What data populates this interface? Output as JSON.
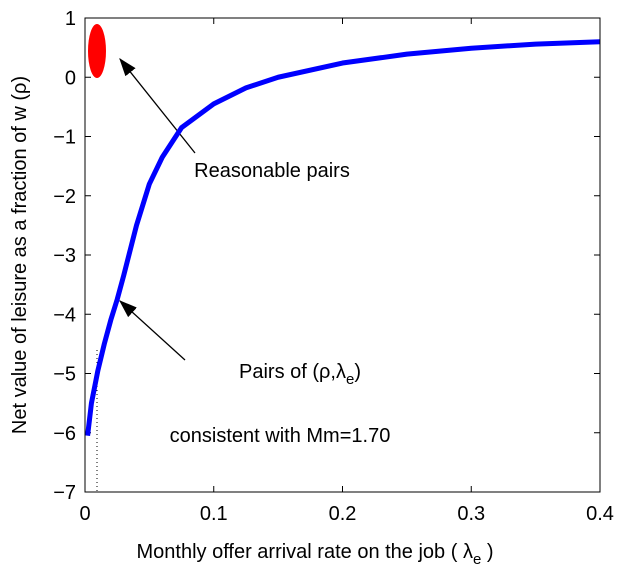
{
  "chart_data": {
    "type": "line",
    "xlabel": [
      "Monthly offer arrival rate on the job ( λ",
      "e",
      " )"
    ],
    "ylabel": "Net value of leisure as a fraction of w (ρ)",
    "x": [
      0.002,
      0.005,
      0.01,
      0.015,
      0.02,
      0.025,
      0.03,
      0.04,
      0.05,
      0.06,
      0.075,
      0.1,
      0.125,
      0.15,
      0.2,
      0.25,
      0.3,
      0.35,
      0.4
    ],
    "series": [
      {
        "name": "Pairs of (ρ,λe) consistent with Mm=1.70",
        "color": "#0000ff",
        "values": [
          -6.05,
          -5.5,
          -4.95,
          -4.5,
          -4.1,
          -3.75,
          -3.35,
          -2.5,
          -1.8,
          -1.35,
          -0.85,
          -0.45,
          -0.18,
          0,
          0.24,
          0.39,
          0.49,
          0.56,
          0.6
        ]
      }
    ],
    "xlim": [
      0,
      0.4
    ],
    "xticks": [
      0,
      0.1,
      0.2,
      0.3,
      0.4
    ],
    "ylim": [
      -7,
      1
    ],
    "yticks": [
      {
        "value": -7,
        "label": "−7"
      },
      {
        "value": -6,
        "label": "−6"
      },
      {
        "value": -5,
        "label": "−5"
      },
      {
        "value": -4,
        "label": "−4"
      },
      {
        "value": -3,
        "label": "−3"
      },
      {
        "value": -2,
        "label": "−2"
      },
      {
        "value": -1,
        "label": "−1"
      },
      0,
      1
    ],
    "annotations": [
      [
        "Reasonable pairs"
      ],
      [
        "Pairs of (ρ,λ",
        "e",
        ")"
      ],
      [
        "consistent with Mm=1.70"
      ]
    ],
    "highlight_color": "#ff0000"
  }
}
